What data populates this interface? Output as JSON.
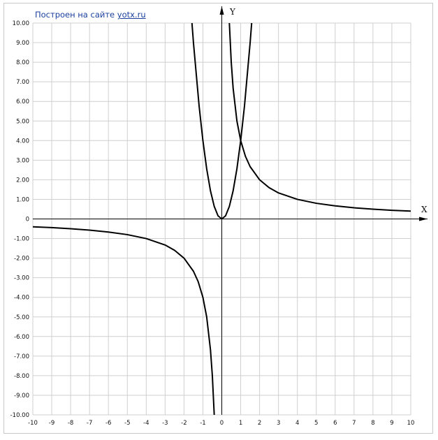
{
  "credit": {
    "prefix": "Построен на сайте",
    "link_text": "yotx.ru"
  },
  "chart_data": {
    "type": "line",
    "xlabel": "X",
    "ylabel": "Y",
    "xlim": [
      -10,
      10
    ],
    "ylim": [
      -10,
      10
    ],
    "grid": true,
    "x_ticks": [
      "-10",
      "-9",
      "-8",
      "-7",
      "-6",
      "-5",
      "-4",
      "-3",
      "-2",
      "-1",
      "0",
      "1",
      "2",
      "3",
      "4",
      "5",
      "6",
      "7",
      "8",
      "9",
      "10"
    ],
    "y_ticks": [
      "10.00",
      "9.00",
      "8.00",
      "7.00",
      "6.00",
      "5.00",
      "4.00",
      "3.00",
      "2.00",
      "1.00",
      "0",
      "-1.00",
      "-2.00",
      "-3.00",
      "-4.00",
      "-5.00",
      "-6.00",
      "-7.00",
      "-8.00",
      "-9.00",
      "-10.00"
    ],
    "series": [
      {
        "x": [
          -1.7,
          -1.5,
          -1.2,
          -1.0,
          -0.8,
          -0.6,
          -0.4,
          -0.2,
          0,
          0.2,
          0.4,
          0.6,
          0.8,
          1.0,
          1.2,
          1.5,
          1.6
        ],
        "y": [
          11.56,
          9.0,
          5.76,
          4.0,
          2.56,
          1.44,
          0.64,
          0.16,
          0,
          0.16,
          0.64,
          1.44,
          2.56,
          4.0,
          5.76,
          9.0,
          10.24
        ]
      },
      {
        "x": [
          0.4,
          0.5,
          0.6,
          0.8,
          1.0,
          1.25,
          1.5,
          2.0,
          2.5,
          3.0,
          4.0,
          5.0,
          6.0,
          7.0,
          8.0,
          9.0,
          10.0
        ],
        "y": [
          10.0,
          8.0,
          6.67,
          5.0,
          4.0,
          3.2,
          2.67,
          2.0,
          1.6,
          1.33,
          1.0,
          0.8,
          0.67,
          0.57,
          0.5,
          0.44,
          0.4
        ]
      },
      {
        "x": [
          -10.0,
          -9.0,
          -8.0,
          -7.0,
          -6.0,
          -5.0,
          -4.0,
          -3.0,
          -2.5,
          -2.0,
          -1.5,
          -1.25,
          -1.0,
          -0.8,
          -0.6,
          -0.5,
          -0.4
        ],
        "y": [
          -0.4,
          -0.44,
          -0.5,
          -0.57,
          -0.67,
          -0.8,
          -1.0,
          -1.33,
          -1.6,
          -2.0,
          -2.67,
          -3.2,
          -4.0,
          -5.0,
          -6.67,
          -8.0,
          -10.0
        ]
      }
    ],
    "line_color": "#000000",
    "grid_color": "#cfcfcf"
  }
}
